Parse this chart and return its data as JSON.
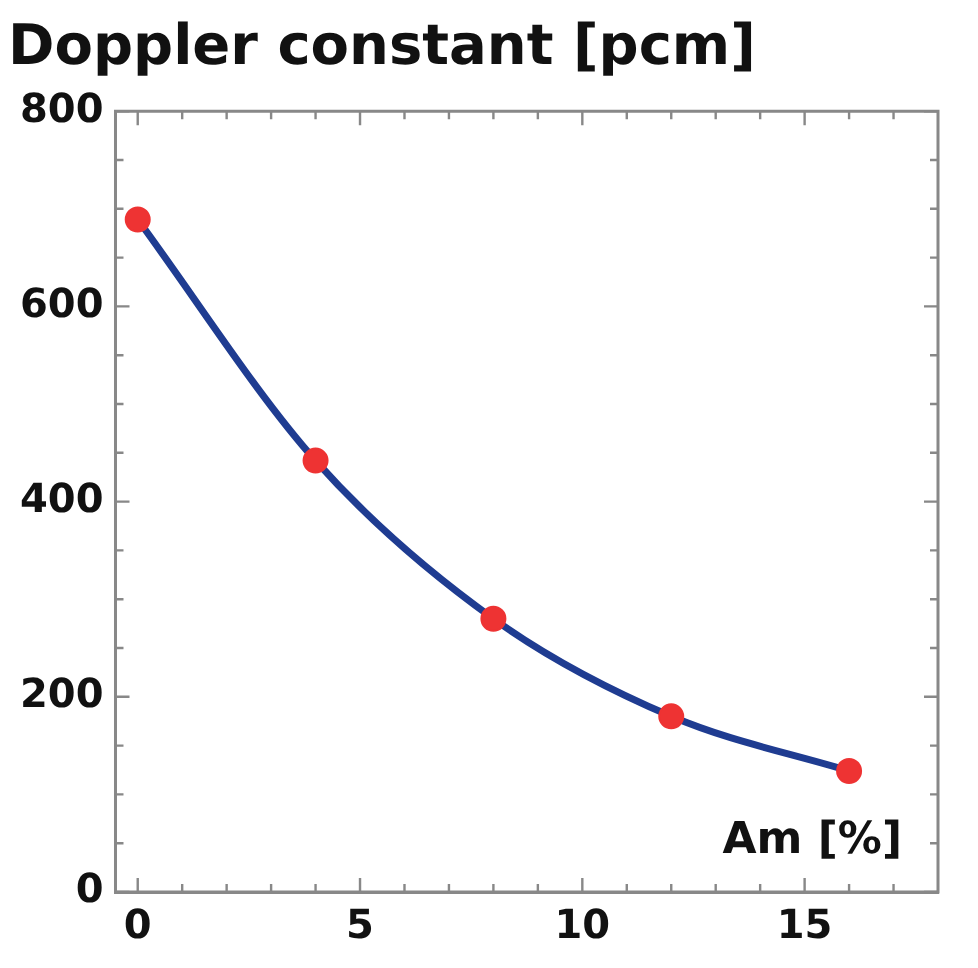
{
  "chart_data": {
    "type": "line",
    "title": "Doppler constant [pcm]",
    "xlabel": "Am [%]",
    "x": [
      0,
      4,
      8,
      12,
      16
    ],
    "series": [
      {
        "color": "#1f3c91",
        "values": [
          689,
          442,
          280,
          180,
          124
        ],
        "marker": "none"
      },
      {
        "type": "scatter",
        "color": "#ee3333",
        "values": [
          689,
          442,
          280,
          180,
          124
        ],
        "marker": "circle"
      }
    ],
    "xlim": [
      -0.5,
      18
    ],
    "xticks": [
      0,
      {
        "value": 1,
        "label": null
      },
      {
        "value": 2,
        "label": null
      },
      {
        "value": 3,
        "label": null
      },
      {
        "value": 4,
        "label": null
      },
      5,
      {
        "value": 6,
        "label": null
      },
      {
        "value": 7,
        "label": null
      },
      {
        "value": 8,
        "label": null
      },
      {
        "value": 9,
        "label": null
      },
      10,
      {
        "value": 11,
        "label": null
      },
      {
        "value": 12,
        "label": null
      },
      {
        "value": 13,
        "label": null
      },
      {
        "value": 14,
        "label": null
      },
      15,
      {
        "value": 16,
        "label": null
      },
      {
        "value": 17,
        "label": null
      }
    ],
    "ylim": [
      0,
      800
    ],
    "yticks": [
      0,
      {
        "value": 50,
        "label": null
      },
      {
        "value": 100,
        "label": null
      },
      {
        "value": 150,
        "label": null
      },
      200,
      {
        "value": 250,
        "label": null
      },
      {
        "value": 300,
        "label": null
      },
      {
        "value": 350,
        "label": null
      },
      400,
      {
        "value": 450,
        "label": null
      },
      {
        "value": 500,
        "label": null
      },
      {
        "value": 550,
        "label": null
      },
      600,
      {
        "value": 650,
        "label": null
      },
      {
        "value": 700,
        "label": null
      },
      {
        "value": 750,
        "label": null
      },
      800
    ],
    "grid": false,
    "legend": false
  }
}
